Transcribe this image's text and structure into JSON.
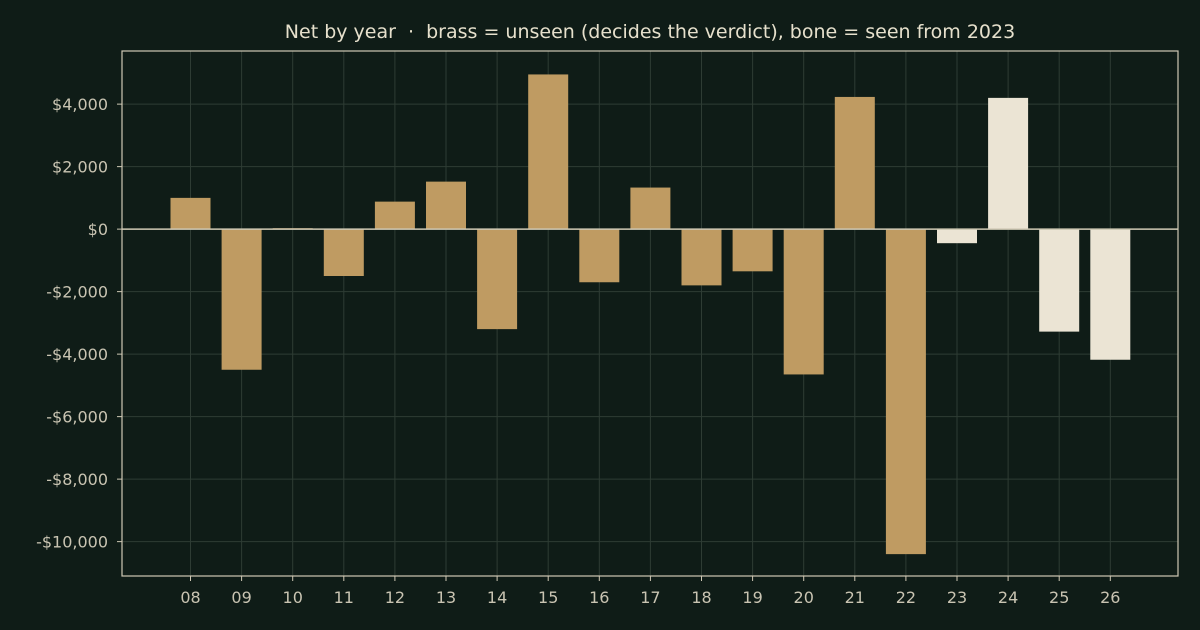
{
  "chart_data": {
    "type": "bar",
    "title": "Net by year  ·  brass = unseen (decides the verdict), bone = seen from 2023",
    "xlabel": "",
    "ylabel": "",
    "categories": [
      "08",
      "09",
      "10",
      "11",
      "12",
      "13",
      "14",
      "15",
      "16",
      "17",
      "18",
      "19",
      "20",
      "21",
      "22",
      "23",
      "24",
      "25",
      "26"
    ],
    "values": [
      1000,
      -4500,
      30,
      -1500,
      880,
      1520,
      -3200,
      4950,
      -1700,
      1330,
      -1800,
      -1350,
      -4650,
      4230,
      -10400,
      -450,
      4200,
      -3280,
      -4180
    ],
    "groups": [
      "unseen",
      "unseen",
      "unseen",
      "unseen",
      "unseen",
      "unseen",
      "unseen",
      "unseen",
      "unseen",
      "unseen",
      "unseen",
      "unseen",
      "unseen",
      "unseen",
      "unseen",
      "seen",
      "seen",
      "seen",
      "seen"
    ],
    "ylim": [
      -11100,
      5700
    ],
    "yticks": [
      4000,
      2000,
      0,
      -2000,
      -4000,
      -6000,
      -8000,
      -10000
    ],
    "ytick_labels": [
      "$4,000",
      "$2,000",
      "$0",
      "-$2,000",
      "-$4,000",
      "-$6,000",
      "-$8,000",
      "-$10,000"
    ],
    "grid": true,
    "colors": {
      "unseen": "#bf9b62",
      "seen": "#ebe4d4",
      "background": "#0f1c17",
      "axes": "#cfc8b4",
      "grid": "#2e3c34",
      "zero_line": "#cfc8b4"
    }
  }
}
